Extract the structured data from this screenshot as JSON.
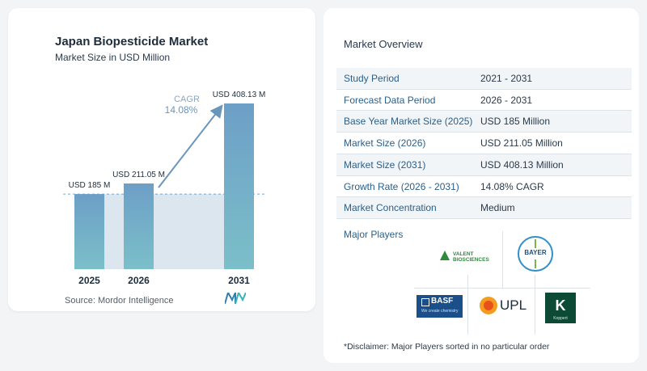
{
  "chart_data": {
    "type": "bar",
    "title": "Japan Biopesticide Market",
    "subtitle": "Market Size in USD Million",
    "categories": [
      "2025",
      "2026",
      "2031"
    ],
    "values": [
      185,
      211.05,
      408.13
    ],
    "value_labels": [
      "USD 185 M",
      "USD 211.05 M",
      "USD 408.13 M"
    ],
    "annotation": {
      "label": "CAGR",
      "value": "14.08%"
    },
    "colors": {
      "bar": "#5f97bd",
      "bar_top": "#6d9fc7",
      "bar_bottom": "#7bbfc9",
      "band": "#dbe6ef",
      "arrow": "#6b96bb"
    }
  },
  "source": "Source:  Mordor Intelligence",
  "overview": {
    "title": "Market Overview",
    "rows": [
      {
        "label": "Study Period",
        "value": "2021 - 2031"
      },
      {
        "label": "Forecast Data Period",
        "value": "2026 - 2031"
      },
      {
        "label": "Base Year Market Size (2025)",
        "value": "USD 185 Million"
      },
      {
        "label": "Market Size (2026)",
        "value": "USD 211.05 Million"
      },
      {
        "label": "Market Size (2031)",
        "value": "USD 408.13 Million"
      },
      {
        "label": "Growth Rate (2026 - 2031)",
        "value": "14.08% CAGR"
      },
      {
        "label": "Market Concentration",
        "value": "Medium"
      }
    ],
    "row_bg": "#f2f5f8",
    "major_players_label": "Major Players",
    "players": {
      "valent": "VALENT BIOSCIENCES",
      "bayer": "BAYER",
      "basf": "BASF",
      "basf_tagline": "We create chemistry",
      "upl": "UPL",
      "koppert": "K",
      "koppert_name": "Koppert"
    },
    "disclaimer": "*Disclaimer: Major Players sorted in no particular order"
  }
}
